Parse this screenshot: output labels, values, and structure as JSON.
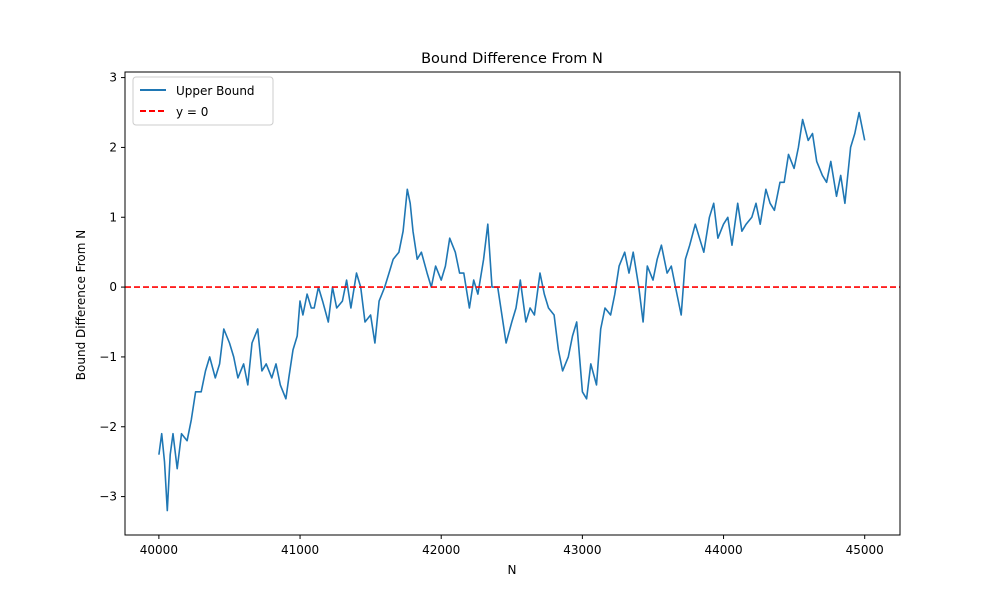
{
  "chart_data": {
    "type": "line",
    "title": "Bound Difference From N",
    "xlabel": "N",
    "ylabel": "Bound Difference From N",
    "xlim": [
      39760,
      45250
    ],
    "ylim": [
      -3.55,
      3.08
    ],
    "xticks": [
      40000,
      41000,
      42000,
      43000,
      44000,
      45000
    ],
    "xtick_labels": [
      "40000",
      "41000",
      "42000",
      "43000",
      "44000",
      "45000"
    ],
    "yticks": [
      -3,
      -2,
      -1,
      0,
      1,
      2,
      3
    ],
    "ytick_labels": [
      "−3",
      "−2",
      "−1",
      "0",
      "1",
      "2",
      "3"
    ],
    "grid": false,
    "legend_position": "top-left",
    "series": [
      {
        "name": "Upper Bound",
        "color": "#1f77b4",
        "style": "solid",
        "x": [
          40000,
          40020,
          40040,
          40060,
          40080,
          40100,
          40130,
          40160,
          40200,
          40230,
          40260,
          40300,
          40330,
          40360,
          40400,
          40430,
          40460,
          40500,
          40530,
          40560,
          40600,
          40630,
          40660,
          40700,
          40730,
          40760,
          40800,
          40830,
          40860,
          40900,
          40920,
          40950,
          40980,
          41000,
          41020,
          41050,
          41080,
          41100,
          41130,
          41160,
          41200,
          41230,
          41260,
          41300,
          41330,
          41360,
          41400,
          41430,
          41460,
          41500,
          41530,
          41560,
          41600,
          41630,
          41660,
          41700,
          41730,
          41760,
          41780,
          41800,
          41830,
          41860,
          41900,
          41930,
          41960,
          42000,
          42030,
          42060,
          42100,
          42130,
          42160,
          42200,
          42230,
          42260,
          42300,
          42330,
          42360,
          42400,
          42430,
          42460,
          42500,
          42530,
          42560,
          42600,
          42630,
          42660,
          42700,
          42730,
          42760,
          42800,
          42830,
          42860,
          42900,
          42930,
          42960,
          43000,
          43030,
          43060,
          43100,
          43130,
          43160,
          43200,
          43230,
          43260,
          43300,
          43330,
          43360,
          43400,
          43430,
          43460,
          43500,
          43530,
          43560,
          43600,
          43630,
          43660,
          43700,
          43730,
          43760,
          43800,
          43830,
          43860,
          43900,
          43930,
          43960,
          44000,
          44030,
          44060,
          44100,
          44130,
          44160,
          44200,
          44230,
          44260,
          44300,
          44330,
          44360,
          44400,
          44430,
          44460,
          44500,
          44530,
          44560,
          44600,
          44630,
          44660,
          44700,
          44730,
          44760,
          44800,
          44830,
          44860,
          44900,
          44930,
          44960,
          45000
        ],
        "y": [
          -2.4,
          -2.1,
          -2.5,
          -3.2,
          -2.4,
          -2.1,
          -2.6,
          -2.1,
          -2.2,
          -1.9,
          -1.5,
          -1.5,
          -1.2,
          -1.0,
          -1.3,
          -1.1,
          -0.6,
          -0.8,
          -1.0,
          -1.3,
          -1.1,
          -1.4,
          -0.8,
          -0.6,
          -1.2,
          -1.1,
          -1.3,
          -1.1,
          -1.4,
          -1.6,
          -1.3,
          -0.9,
          -0.7,
          -0.2,
          -0.4,
          -0.1,
          -0.3,
          -0.3,
          0.0,
          -0.2,
          -0.5,
          0.0,
          -0.3,
          -0.2,
          0.1,
          -0.3,
          0.2,
          0.0,
          -0.5,
          -0.4,
          -0.8,
          -0.2,
          0.0,
          0.2,
          0.4,
          0.5,
          0.8,
          1.4,
          1.2,
          0.8,
          0.4,
          0.5,
          0.2,
          0.0,
          0.3,
          0.1,
          0.3,
          0.7,
          0.5,
          0.2,
          0.2,
          -0.3,
          0.1,
          -0.1,
          0.4,
          0.9,
          0.0,
          0.0,
          -0.4,
          -0.8,
          -0.5,
          -0.3,
          0.1,
          -0.5,
          -0.3,
          -0.4,
          0.2,
          -0.1,
          -0.3,
          -0.4,
          -0.9,
          -1.2,
          -1.0,
          -0.7,
          -0.5,
          -1.5,
          -1.6,
          -1.1,
          -1.4,
          -0.6,
          -0.3,
          -0.4,
          -0.1,
          0.3,
          0.5,
          0.2,
          0.5,
          0.0,
          -0.5,
          0.3,
          0.1,
          0.4,
          0.6,
          0.2,
          0.3,
          0.0,
          -0.4,
          0.4,
          0.6,
          0.9,
          0.7,
          0.5,
          1.0,
          1.2,
          0.7,
          0.9,
          1.0,
          0.6,
          1.2,
          0.8,
          0.9,
          1.0,
          1.2,
          0.9,
          1.4,
          1.2,
          1.1,
          1.5,
          1.5,
          1.9,
          1.7,
          2.0,
          2.4,
          2.1,
          2.2,
          1.8,
          1.6,
          1.5,
          1.8,
          1.3,
          1.6,
          1.2,
          2.0,
          2.2,
          2.5,
          2.1
        ]
      },
      {
        "name": "y = 0",
        "color": "#ff0000",
        "style": "dashed",
        "x": [
          39760,
          45250
        ],
        "y": [
          0,
          0
        ]
      }
    ]
  }
}
